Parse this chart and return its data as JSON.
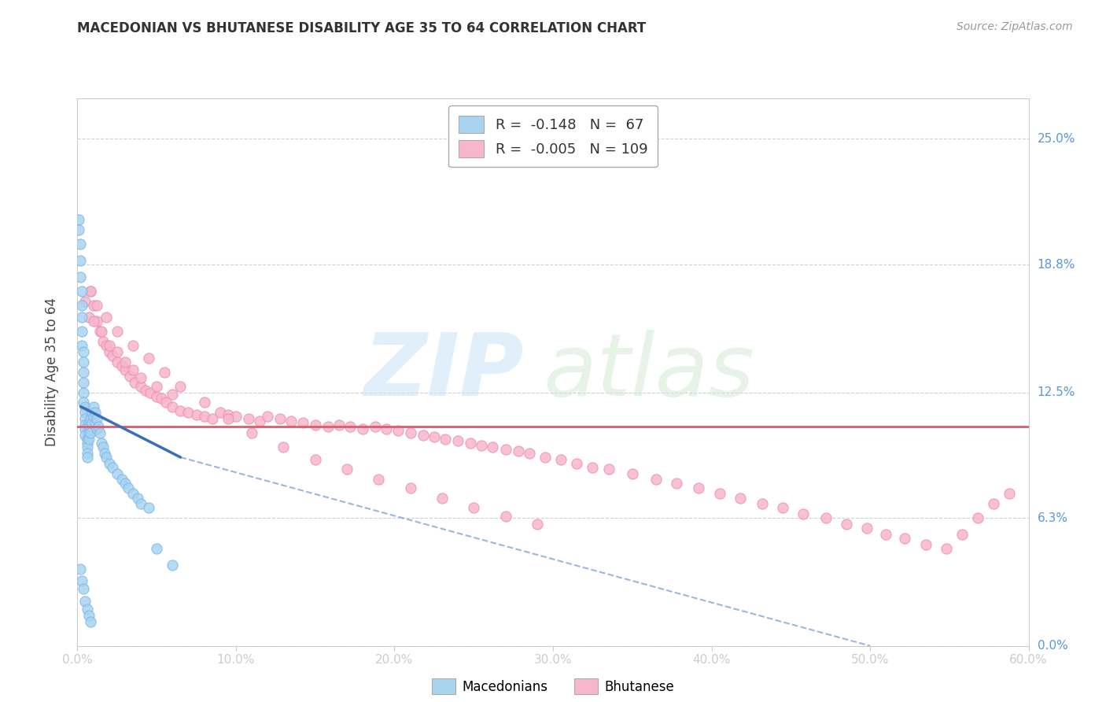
{
  "title": "MACEDONIAN VS BHUTANESE DISABILITY AGE 35 TO 64 CORRELATION CHART",
  "source": "Source: ZipAtlas.com",
  "xlabel_ticks": [
    "0.0%",
    "10.0%",
    "20.0%",
    "30.0%",
    "40.0%",
    "50.0%",
    "60.0%"
  ],
  "xlabel_vals": [
    0.0,
    0.1,
    0.2,
    0.3,
    0.4,
    0.5,
    0.6
  ],
  "ylabel_ticks": [
    "0.0%",
    "6.3%",
    "12.5%",
    "18.8%",
    "25.0%"
  ],
  "ylabel_vals": [
    0.0,
    0.063,
    0.125,
    0.188,
    0.25
  ],
  "xlim": [
    0.0,
    0.6
  ],
  "ylim": [
    0.0,
    0.27
  ],
  "legend_r1": "-0.148",
  "legend_n1": "67",
  "legend_r2": "-0.005",
  "legend_n2": "109",
  "macedonian_color": "#a8d4f0",
  "bhutanese_color": "#f7b6cc",
  "macedonian_line_color": "#3b6fba",
  "bhutanese_line_color": "#e05a6e",
  "macedonians_label": "Macedonians",
  "bhutanese_label": "Bhutanese",
  "mac_line_x_start": 0.002,
  "mac_line_x_solid_end": 0.065,
  "mac_line_x_dash_end": 0.5,
  "mac_line_y_start": 0.118,
  "mac_line_y_solid_end": 0.093,
  "mac_line_y_dash_end": 0.0,
  "bhu_line_x_start": 0.0,
  "bhu_line_x_end": 0.6,
  "bhu_line_y_start": 0.108,
  "bhu_line_y_end": 0.108,
  "macedonian_x": [
    0.001,
    0.001,
    0.002,
    0.002,
    0.002,
    0.003,
    0.003,
    0.003,
    0.003,
    0.003,
    0.004,
    0.004,
    0.004,
    0.004,
    0.004,
    0.004,
    0.005,
    0.005,
    0.005,
    0.005,
    0.005,
    0.005,
    0.006,
    0.006,
    0.006,
    0.006,
    0.006,
    0.007,
    0.007,
    0.007,
    0.007,
    0.008,
    0.008,
    0.008,
    0.009,
    0.009,
    0.01,
    0.01,
    0.011,
    0.011,
    0.012,
    0.012,
    0.013,
    0.014,
    0.015,
    0.016,
    0.017,
    0.018,
    0.02,
    0.022,
    0.025,
    0.028,
    0.03,
    0.032,
    0.035,
    0.038,
    0.04,
    0.045,
    0.05,
    0.06,
    0.002,
    0.003,
    0.004,
    0.005,
    0.006,
    0.007,
    0.008
  ],
  "macedonian_y": [
    0.21,
    0.205,
    0.198,
    0.19,
    0.182,
    0.175,
    0.168,
    0.162,
    0.155,
    0.148,
    0.145,
    0.14,
    0.135,
    0.13,
    0.125,
    0.12,
    0.118,
    0.115,
    0.112,
    0.109,
    0.107,
    0.104,
    0.102,
    0.1,
    0.098,
    0.095,
    0.093,
    0.11,
    0.108,
    0.105,
    0.102,
    0.112,
    0.108,
    0.105,
    0.115,
    0.11,
    0.118,
    0.113,
    0.115,
    0.11,
    0.112,
    0.107,
    0.108,
    0.105,
    0.1,
    0.098,
    0.095,
    0.093,
    0.09,
    0.088,
    0.085,
    0.082,
    0.08,
    0.078,
    0.075,
    0.073,
    0.07,
    0.068,
    0.048,
    0.04,
    0.038,
    0.032,
    0.028,
    0.022,
    0.018,
    0.015,
    0.012
  ],
  "bhutanese_x": [
    0.005,
    0.007,
    0.008,
    0.01,
    0.012,
    0.014,
    0.016,
    0.018,
    0.02,
    0.022,
    0.025,
    0.028,
    0.03,
    0.033,
    0.036,
    0.04,
    0.043,
    0.046,
    0.05,
    0.053,
    0.056,
    0.06,
    0.065,
    0.07,
    0.075,
    0.08,
    0.085,
    0.09,
    0.095,
    0.1,
    0.108,
    0.115,
    0.12,
    0.128,
    0.135,
    0.142,
    0.15,
    0.158,
    0.165,
    0.172,
    0.18,
    0.188,
    0.195,
    0.202,
    0.21,
    0.218,
    0.225,
    0.232,
    0.24,
    0.248,
    0.255,
    0.262,
    0.27,
    0.278,
    0.285,
    0.295,
    0.305,
    0.315,
    0.325,
    0.335,
    0.35,
    0.365,
    0.378,
    0.392,
    0.405,
    0.418,
    0.432,
    0.445,
    0.458,
    0.472,
    0.485,
    0.498,
    0.51,
    0.522,
    0.535,
    0.548,
    0.558,
    0.568,
    0.578,
    0.588,
    0.01,
    0.015,
    0.02,
    0.025,
    0.03,
    0.035,
    0.04,
    0.05,
    0.06,
    0.008,
    0.012,
    0.018,
    0.025,
    0.035,
    0.045,
    0.055,
    0.065,
    0.08,
    0.095,
    0.11,
    0.13,
    0.15,
    0.17,
    0.19,
    0.21,
    0.23,
    0.25,
    0.27,
    0.29
  ],
  "bhutanese_y": [
    0.17,
    0.162,
    0.175,
    0.168,
    0.16,
    0.155,
    0.15,
    0.148,
    0.145,
    0.143,
    0.14,
    0.138,
    0.136,
    0.133,
    0.13,
    0.128,
    0.126,
    0.125,
    0.123,
    0.122,
    0.12,
    0.118,
    0.116,
    0.115,
    0.114,
    0.113,
    0.112,
    0.115,
    0.114,
    0.113,
    0.112,
    0.111,
    0.113,
    0.112,
    0.111,
    0.11,
    0.109,
    0.108,
    0.109,
    0.108,
    0.107,
    0.108,
    0.107,
    0.106,
    0.105,
    0.104,
    0.103,
    0.102,
    0.101,
    0.1,
    0.099,
    0.098,
    0.097,
    0.096,
    0.095,
    0.093,
    0.092,
    0.09,
    0.088,
    0.087,
    0.085,
    0.082,
    0.08,
    0.078,
    0.075,
    0.073,
    0.07,
    0.068,
    0.065,
    0.063,
    0.06,
    0.058,
    0.055,
    0.053,
    0.05,
    0.048,
    0.055,
    0.063,
    0.07,
    0.075,
    0.16,
    0.155,
    0.148,
    0.145,
    0.14,
    0.136,
    0.132,
    0.128,
    0.124,
    0.175,
    0.168,
    0.162,
    0.155,
    0.148,
    0.142,
    0.135,
    0.128,
    0.12,
    0.112,
    0.105,
    0.098,
    0.092,
    0.087,
    0.082,
    0.078,
    0.073,
    0.068,
    0.064,
    0.06
  ]
}
